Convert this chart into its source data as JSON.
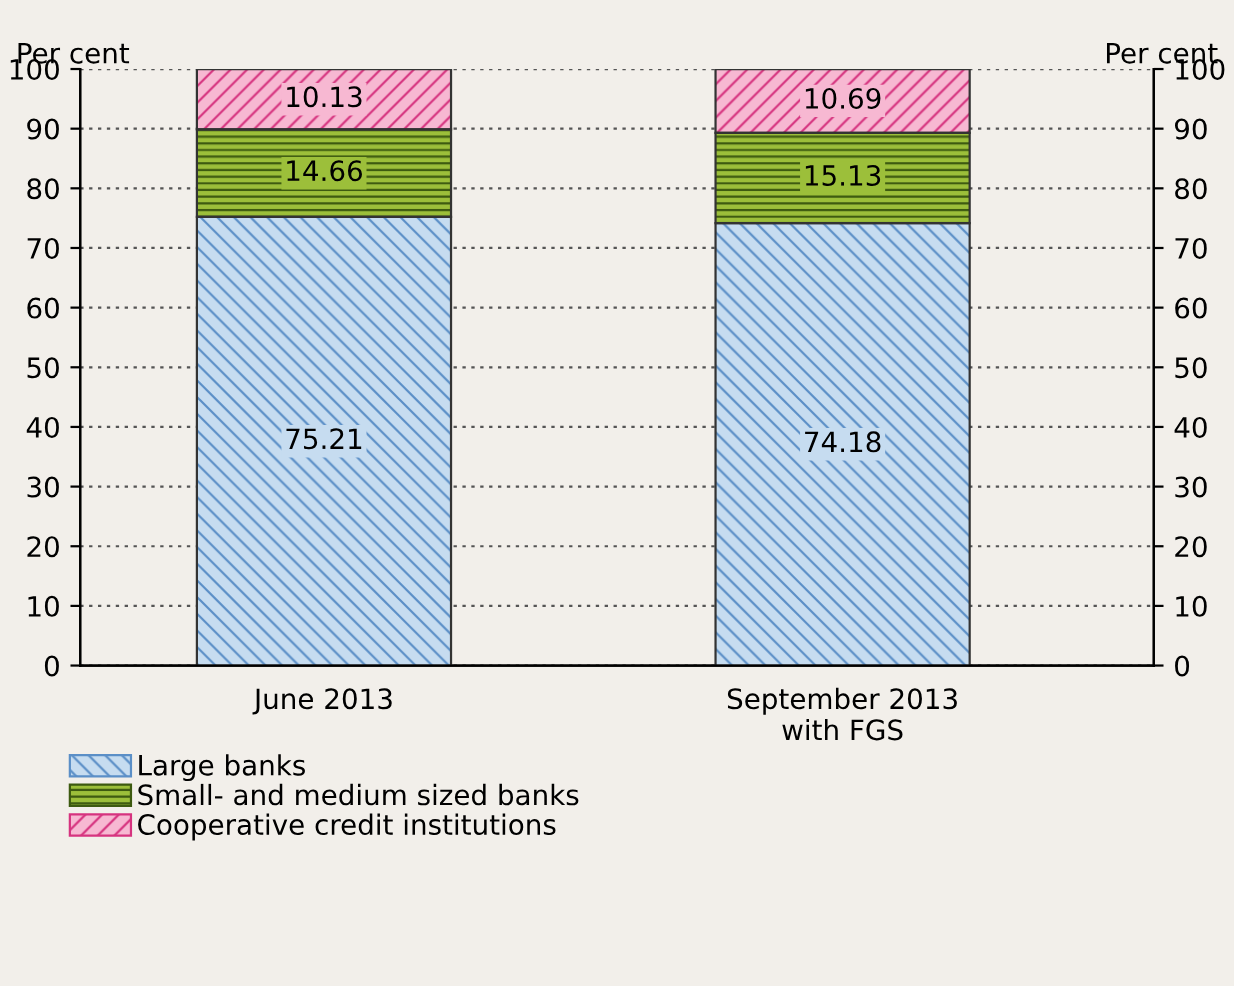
{
  "chart_data": {
    "type": "bar",
    "stacked": true,
    "categories": [
      "June 2013",
      "September 2013\nwith FGS"
    ],
    "series": [
      {
        "name": "Large banks",
        "color": "#c6dcf0",
        "values": [
          75.21,
          74.18
        ]
      },
      {
        "name": "Small- and medium sized banks",
        "color": "#9cbf3a",
        "values": [
          14.66,
          15.13
        ]
      },
      {
        "name": "Cooperative credit institutions",
        "color": "#f7b8d2",
        "values": [
          10.13,
          10.69
        ]
      }
    ],
    "ylabel": "Per cent",
    "y2label": "Per cent",
    "ylim": [
      0,
      100
    ],
    "yticks": [
      0,
      10,
      20,
      30,
      40,
      50,
      60,
      70,
      80,
      90,
      100
    ],
    "y2lim": [
      0,
      100
    ],
    "y2ticks": [
      0,
      10,
      20,
      30,
      40,
      50,
      60,
      70,
      80,
      90,
      100
    ],
    "grid": "y",
    "data_labels": true,
    "legend": "bottom left"
  }
}
